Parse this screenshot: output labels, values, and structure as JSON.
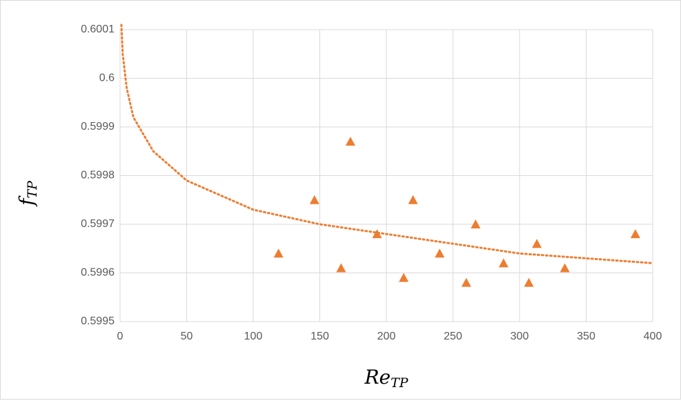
{
  "chart_data": {
    "type": "scatter",
    "x_label": [
      "Re",
      "TP"
    ],
    "y_label": [
      "f",
      "TP"
    ],
    "series": [
      {
        "color": "#ed7d31",
        "marker": "triangle",
        "x": [
          119,
          146,
          166,
          173,
          193,
          213,
          220,
          240,
          260,
          267,
          288,
          307,
          313,
          334,
          387
        ],
        "values": [
          0.59964,
          0.59975,
          0.59961,
          0.59987,
          0.59968,
          0.59959,
          0.59975,
          0.59964,
          0.59958,
          0.5997,
          0.59962,
          0.59958,
          0.59966,
          0.59961,
          0.59968
        ]
      }
    ],
    "trendline": {
      "kind": "logarithmic",
      "color": "#ed7d31",
      "style": "dotted",
      "x": [
        1,
        2,
        5,
        10,
        25,
        50,
        100,
        150,
        200,
        250,
        300,
        350,
        400
      ],
      "values": [
        0.60011,
        0.60005,
        0.59998,
        0.59992,
        0.59985,
        0.59979,
        0.59973,
        0.5997,
        0.59968,
        0.59966,
        0.59964,
        0.59963,
        0.59962
      ]
    },
    "xlim": [
      0,
      400
    ],
    "xticks": [
      0,
      50,
      100,
      150,
      200,
      250,
      300,
      350,
      400
    ],
    "ylim": [
      0.5995,
      0.6001
    ],
    "yticks": [
      0.5995,
      0.5996,
      0.5997,
      0.5998,
      0.5999,
      0.6,
      0.6001
    ],
    "grid": true
  }
}
